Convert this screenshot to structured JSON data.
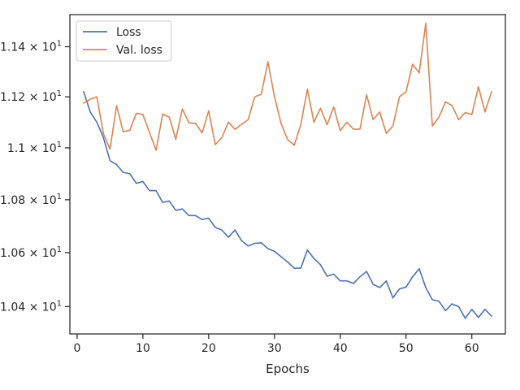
{
  "chart_data": {
    "type": "line",
    "title": "",
    "xlabel": "Epochs",
    "ylabel": "",
    "x_ticks": [
      0,
      10,
      20,
      30,
      40,
      50,
      60
    ],
    "x_tick_labels": [
      "0",
      "10",
      "20",
      "30",
      "40",
      "50",
      "60"
    ],
    "y_ticks": [
      10.4,
      10.6,
      10.8,
      11.0,
      11.2,
      11.4
    ],
    "y_tick_mantissas": [
      "1.04",
      "1.06",
      "1.08",
      "1.1",
      "1.12",
      "1.14"
    ],
    "y_tick_base": "× 10",
    "y_tick_exponent": "1",
    "xlim": [
      -1.1,
      65.1
    ],
    "ylim": [
      10.3,
      11.53
    ],
    "y_scale": "log",
    "grid": false,
    "legend_position": "top-left",
    "x": [
      1,
      2,
      3,
      4,
      5,
      6,
      7,
      8,
      9,
      10,
      11,
      12,
      13,
      14,
      15,
      16,
      17,
      18,
      19,
      20,
      21,
      22,
      23,
      24,
      25,
      26,
      27,
      28,
      29,
      30,
      31,
      32,
      33,
      34,
      35,
      36,
      37,
      38,
      39,
      40,
      41,
      42,
      43,
      44,
      45,
      46,
      47,
      48,
      49,
      50,
      51,
      52,
      53,
      54,
      55,
      56,
      57,
      58,
      59,
      60,
      61,
      62,
      63
    ],
    "series": [
      {
        "name": "Loss",
        "color": "#4c72b0",
        "values": [
          11.22,
          11.14,
          11.1,
          11.04,
          10.95,
          10.935,
          10.905,
          10.9,
          10.863,
          10.87,
          10.835,
          10.835,
          10.79,
          10.795,
          10.76,
          10.765,
          10.74,
          10.74,
          10.725,
          10.73,
          10.695,
          10.685,
          10.658,
          10.685,
          10.645,
          10.625,
          10.635,
          10.637,
          10.615,
          10.605,
          10.585,
          10.565,
          10.542,
          10.542,
          10.61,
          10.578,
          10.555,
          10.512,
          10.52,
          10.495,
          10.495,
          10.485,
          10.51,
          10.53,
          10.482,
          10.47,
          10.495,
          10.432,
          10.465,
          10.472,
          10.51,
          10.54,
          10.47,
          10.425,
          10.42,
          10.385,
          10.41,
          10.4,
          10.357,
          10.39,
          10.36,
          10.39,
          10.365
        ]
      },
      {
        "name": "Val. loss",
        "color": "#dd8452",
        "values": [
          11.175,
          11.19,
          11.2,
          11.055,
          10.995,
          11.165,
          11.063,
          11.068,
          11.135,
          11.13,
          11.06,
          10.99,
          11.132,
          11.12,
          11.033,
          11.152,
          11.098,
          11.095,
          11.058,
          11.145,
          11.012,
          11.04,
          11.1,
          11.072,
          11.092,
          11.11,
          11.2,
          11.21,
          11.34,
          11.2,
          11.095,
          11.032,
          11.01,
          11.09,
          11.23,
          11.1,
          11.155,
          11.09,
          11.16,
          11.067,
          11.1,
          11.073,
          11.073,
          11.208,
          11.11,
          11.14,
          11.056,
          11.085,
          11.2,
          11.22,
          11.33,
          11.295,
          11.495,
          11.085,
          11.12,
          11.18,
          11.165,
          11.11,
          11.138,
          11.13,
          11.24,
          11.14,
          11.22
        ]
      }
    ]
  }
}
